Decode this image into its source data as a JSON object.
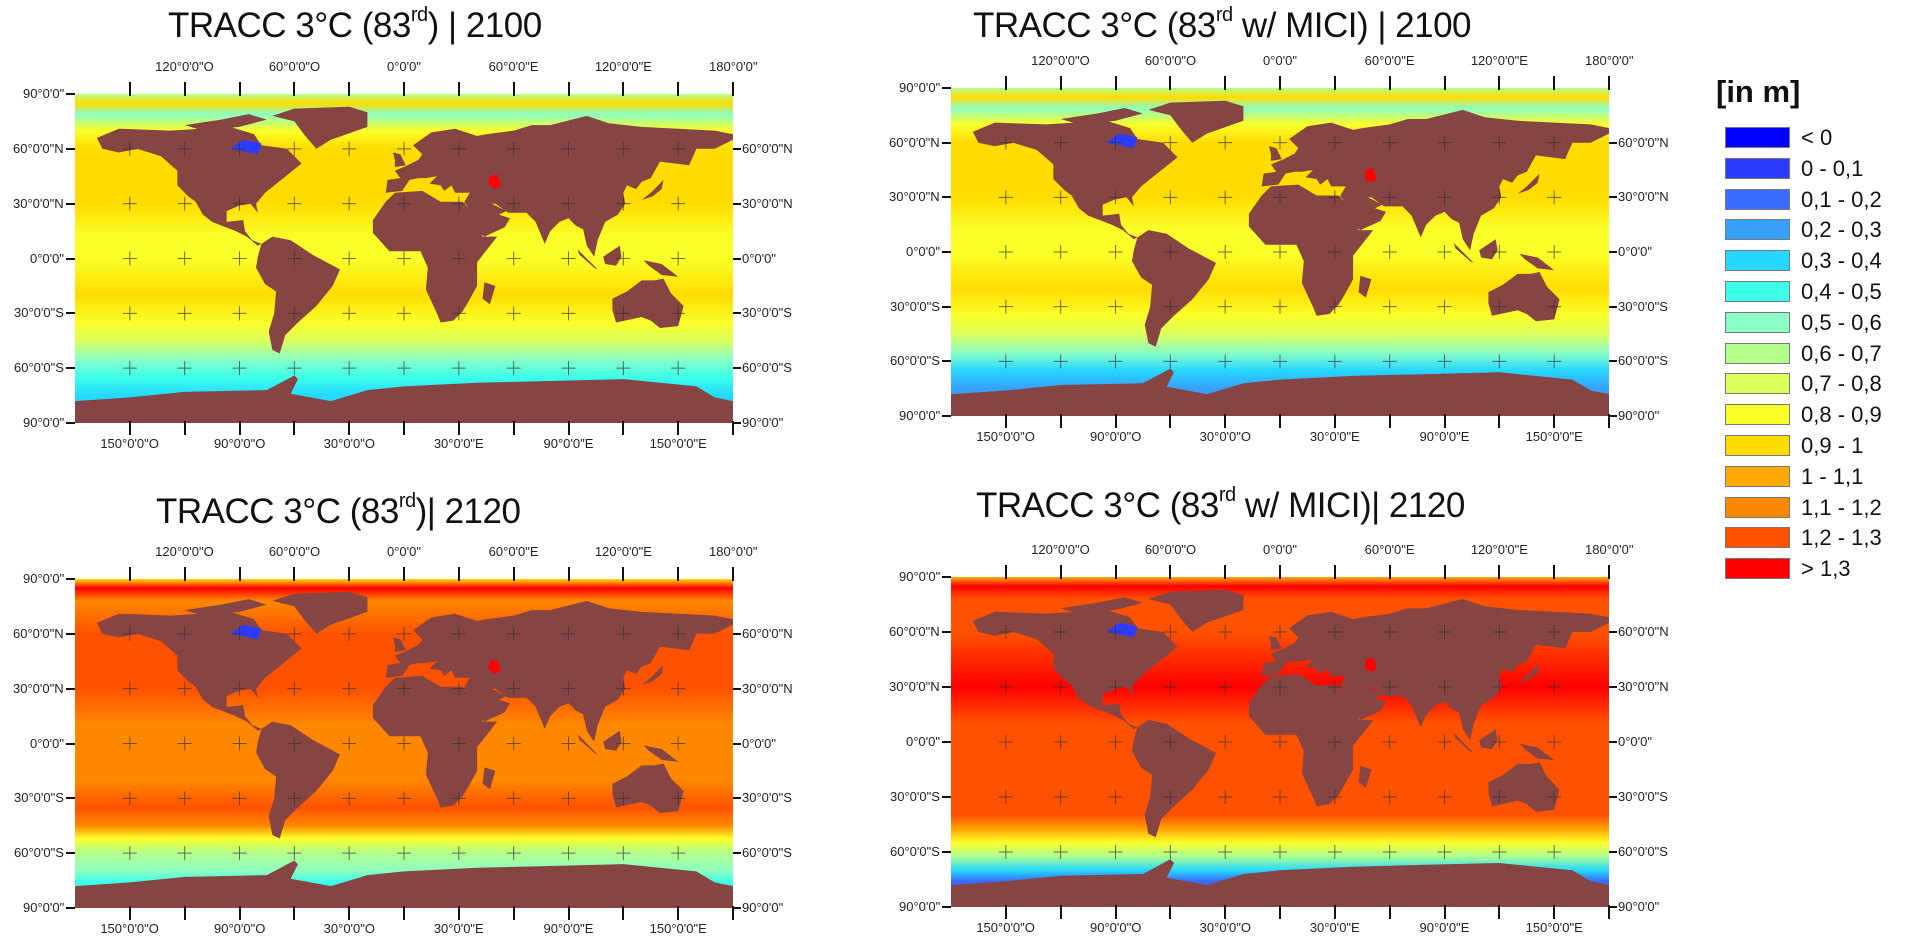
{
  "land_color": "#864443",
  "maps": [
    {
      "title": {
        "prefix": "TRACC 3°C (83",
        "sup": "rd",
        "suffix": ") | 2100"
      },
      "ocean_profile": [
        [
          90,
          7
        ],
        [
          85,
          10
        ],
        [
          79,
          6
        ],
        [
          70,
          9
        ],
        [
          60,
          10
        ],
        [
          30,
          10
        ],
        [
          12,
          9
        ],
        [
          0,
          9
        ],
        [
          -20,
          10
        ],
        [
          -35,
          9
        ],
        [
          -45,
          8
        ],
        [
          -55,
          6
        ],
        [
          -65,
          5
        ],
        [
          -75,
          4
        ],
        [
          -90,
          4
        ]
      ]
    },
    {
      "title": {
        "prefix": "TRACC 3°C (83",
        "sup": "rd",
        "suffix": " w/ MICI) | 2100"
      },
      "ocean_profile": [
        [
          90,
          7
        ],
        [
          85,
          10
        ],
        [
          79,
          6
        ],
        [
          70,
          9
        ],
        [
          60,
          10
        ],
        [
          30,
          10
        ],
        [
          12,
          9
        ],
        [
          0,
          9
        ],
        [
          -20,
          10
        ],
        [
          -35,
          9
        ],
        [
          -45,
          8
        ],
        [
          -55,
          6
        ],
        [
          -65,
          4
        ],
        [
          -75,
          3
        ],
        [
          -90,
          3
        ]
      ]
    },
    {
      "title": {
        "prefix": "TRACC 3°C (83",
        "sup": "rd",
        "suffix": ")| 2120"
      },
      "ocean_profile": [
        [
          90,
          10
        ],
        [
          85,
          14
        ],
        [
          78,
          12
        ],
        [
          60,
          13
        ],
        [
          30,
          13
        ],
        [
          10,
          12
        ],
        [
          0,
          12
        ],
        [
          -20,
          12
        ],
        [
          -35,
          13
        ],
        [
          -45,
          12
        ],
        [
          -52,
          9
        ],
        [
          -60,
          7
        ],
        [
          -70,
          6
        ],
        [
          -76,
          5
        ],
        [
          -90,
          5
        ]
      ]
    },
    {
      "title": {
        "prefix": "TRACC 3°C (83",
        "sup": "rd",
        "suffix": " w/ MICI)| 2120"
      },
      "ocean_profile": [
        [
          90,
          11
        ],
        [
          85,
          14
        ],
        [
          78,
          13
        ],
        [
          60,
          13
        ],
        [
          30,
          14
        ],
        [
          10,
          13
        ],
        [
          0,
          13
        ],
        [
          -20,
          13
        ],
        [
          -40,
          13
        ],
        [
          -48,
          11
        ],
        [
          -55,
          9
        ],
        [
          -62,
          7
        ],
        [
          -70,
          4
        ],
        [
          -76,
          2
        ],
        [
          -90,
          2
        ]
      ]
    }
  ],
  "axes": {
    "top_labels": [
      {
        "lon": -120,
        "text": "120°0'0\"O"
      },
      {
        "lon": -60,
        "text": "60°0'0\"O"
      },
      {
        "lon": 0,
        "text": "0°0'0\""
      },
      {
        "lon": 60,
        "text": "60°0'0\"E"
      },
      {
        "lon": 120,
        "text": "120°0'0\"E"
      },
      {
        "lon": 180,
        "text": "180°0'0\""
      }
    ],
    "bottom_labels": [
      {
        "lon": -150,
        "text": "150°0'0\"O"
      },
      {
        "lon": -90,
        "text": "90°0'0\"O"
      },
      {
        "lon": -30,
        "text": "30°0'0\"O"
      },
      {
        "lon": 30,
        "text": "30°0'0\"E"
      },
      {
        "lon": 90,
        "text": "90°0'0\"E"
      },
      {
        "lon": 150,
        "text": "150°0'0\"E"
      }
    ],
    "left_labels": [
      {
        "lat": 90,
        "text": "90°0'0\""
      },
      {
        "lat": 60,
        "text": "60°0'0\"N"
      },
      {
        "lat": 30,
        "text": "30°0'0\"N"
      },
      {
        "lat": 0,
        "text": "0°0'0\""
      },
      {
        "lat": -30,
        "text": "30°0'0\"S"
      },
      {
        "lat": -60,
        "text": "60°0'0\"S"
      },
      {
        "lat": -90,
        "text": "90°0'0\""
      }
    ],
    "right_labels": [
      {
        "lat": 60,
        "text": "60°0'0\"N"
      },
      {
        "lat": 30,
        "text": "30°0'0\"N"
      },
      {
        "lat": 0,
        "text": "0°0'0\""
      },
      {
        "lat": -30,
        "text": "30°0'0\"S"
      },
      {
        "lat": -60,
        "text": "60°0'0\"S"
      },
      {
        "lat": -90,
        "text": "90°0'0\""
      }
    ]
  },
  "legend": {
    "title": "[in m]",
    "items": [
      {
        "label": "< 0",
        "color": "#0000FF"
      },
      {
        "label": "0 - 0,1",
        "color": "#2B3CFF"
      },
      {
        "label": "0,1 - 0,2",
        "color": "#3A6CFF"
      },
      {
        "label": "0,2 - 0,3",
        "color": "#38A0FF"
      },
      {
        "label": "0,3 - 0,4",
        "color": "#26D8FF"
      },
      {
        "label": "0,4 - 0,5",
        "color": "#3CFFEA"
      },
      {
        "label": "0,5 - 0,6",
        "color": "#8CFFC4"
      },
      {
        "label": "0,6 - 0,7",
        "color": "#B2FF8C"
      },
      {
        "label": "0,7 - 0,8",
        "color": "#DCFF5A"
      },
      {
        "label": "0,8 - 0,9",
        "color": "#FAFF2A"
      },
      {
        "label": "0,9 - 1",
        "color": "#FFDC00"
      },
      {
        "label": "1 - 1,1",
        "color": "#FFAA00"
      },
      {
        "label": "1,1 - 1,2",
        "color": "#FF8800"
      },
      {
        "label": "1,2 - 1,3",
        "color": "#FF5200"
      },
      {
        "label": "> 1,3",
        "color": "#FF0000"
      }
    ]
  }
}
